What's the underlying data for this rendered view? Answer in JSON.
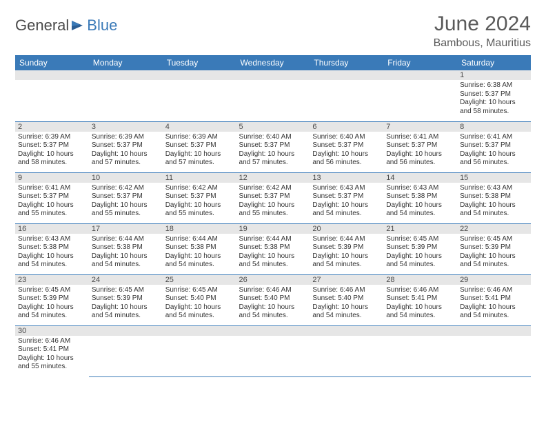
{
  "brand": {
    "part1": "General",
    "part2": "Blue"
  },
  "title": "June 2024",
  "location": "Bambous, Mauritius",
  "colors": {
    "header_bg": "#3a7ab8",
    "header_text": "#ffffff",
    "daynum_bg": "#e6e6e6",
    "border": "#3a7ab8",
    "text": "#333333",
    "title_text": "#5a5a5a"
  },
  "fonts": {
    "header_size": 12,
    "cell_size": 10,
    "title_size": 30,
    "location_size": 16
  },
  "weekdays": [
    "Sunday",
    "Monday",
    "Tuesday",
    "Wednesday",
    "Thursday",
    "Friday",
    "Saturday"
  ],
  "grid": [
    [
      null,
      null,
      null,
      null,
      null,
      null,
      {
        "n": "1",
        "sr": "Sunrise: 6:38 AM",
        "ss": "Sunset: 5:37 PM",
        "dl": "Daylight: 10 hours and 58 minutes."
      }
    ],
    [
      {
        "n": "2",
        "sr": "Sunrise: 6:39 AM",
        "ss": "Sunset: 5:37 PM",
        "dl": "Daylight: 10 hours and 58 minutes."
      },
      {
        "n": "3",
        "sr": "Sunrise: 6:39 AM",
        "ss": "Sunset: 5:37 PM",
        "dl": "Daylight: 10 hours and 57 minutes."
      },
      {
        "n": "4",
        "sr": "Sunrise: 6:39 AM",
        "ss": "Sunset: 5:37 PM",
        "dl": "Daylight: 10 hours and 57 minutes."
      },
      {
        "n": "5",
        "sr": "Sunrise: 6:40 AM",
        "ss": "Sunset: 5:37 PM",
        "dl": "Daylight: 10 hours and 57 minutes."
      },
      {
        "n": "6",
        "sr": "Sunrise: 6:40 AM",
        "ss": "Sunset: 5:37 PM",
        "dl": "Daylight: 10 hours and 56 minutes."
      },
      {
        "n": "7",
        "sr": "Sunrise: 6:41 AM",
        "ss": "Sunset: 5:37 PM",
        "dl": "Daylight: 10 hours and 56 minutes."
      },
      {
        "n": "8",
        "sr": "Sunrise: 6:41 AM",
        "ss": "Sunset: 5:37 PM",
        "dl": "Daylight: 10 hours and 56 minutes."
      }
    ],
    [
      {
        "n": "9",
        "sr": "Sunrise: 6:41 AM",
        "ss": "Sunset: 5:37 PM",
        "dl": "Daylight: 10 hours and 55 minutes."
      },
      {
        "n": "10",
        "sr": "Sunrise: 6:42 AM",
        "ss": "Sunset: 5:37 PM",
        "dl": "Daylight: 10 hours and 55 minutes."
      },
      {
        "n": "11",
        "sr": "Sunrise: 6:42 AM",
        "ss": "Sunset: 5:37 PM",
        "dl": "Daylight: 10 hours and 55 minutes."
      },
      {
        "n": "12",
        "sr": "Sunrise: 6:42 AM",
        "ss": "Sunset: 5:37 PM",
        "dl": "Daylight: 10 hours and 55 minutes."
      },
      {
        "n": "13",
        "sr": "Sunrise: 6:43 AM",
        "ss": "Sunset: 5:37 PM",
        "dl": "Daylight: 10 hours and 54 minutes."
      },
      {
        "n": "14",
        "sr": "Sunrise: 6:43 AM",
        "ss": "Sunset: 5:38 PM",
        "dl": "Daylight: 10 hours and 54 minutes."
      },
      {
        "n": "15",
        "sr": "Sunrise: 6:43 AM",
        "ss": "Sunset: 5:38 PM",
        "dl": "Daylight: 10 hours and 54 minutes."
      }
    ],
    [
      {
        "n": "16",
        "sr": "Sunrise: 6:43 AM",
        "ss": "Sunset: 5:38 PM",
        "dl": "Daylight: 10 hours and 54 minutes."
      },
      {
        "n": "17",
        "sr": "Sunrise: 6:44 AM",
        "ss": "Sunset: 5:38 PM",
        "dl": "Daylight: 10 hours and 54 minutes."
      },
      {
        "n": "18",
        "sr": "Sunrise: 6:44 AM",
        "ss": "Sunset: 5:38 PM",
        "dl": "Daylight: 10 hours and 54 minutes."
      },
      {
        "n": "19",
        "sr": "Sunrise: 6:44 AM",
        "ss": "Sunset: 5:38 PM",
        "dl": "Daylight: 10 hours and 54 minutes."
      },
      {
        "n": "20",
        "sr": "Sunrise: 6:44 AM",
        "ss": "Sunset: 5:39 PM",
        "dl": "Daylight: 10 hours and 54 minutes."
      },
      {
        "n": "21",
        "sr": "Sunrise: 6:45 AM",
        "ss": "Sunset: 5:39 PM",
        "dl": "Daylight: 10 hours and 54 minutes."
      },
      {
        "n": "22",
        "sr": "Sunrise: 6:45 AM",
        "ss": "Sunset: 5:39 PM",
        "dl": "Daylight: 10 hours and 54 minutes."
      }
    ],
    [
      {
        "n": "23",
        "sr": "Sunrise: 6:45 AM",
        "ss": "Sunset: 5:39 PM",
        "dl": "Daylight: 10 hours and 54 minutes."
      },
      {
        "n": "24",
        "sr": "Sunrise: 6:45 AM",
        "ss": "Sunset: 5:39 PM",
        "dl": "Daylight: 10 hours and 54 minutes."
      },
      {
        "n": "25",
        "sr": "Sunrise: 6:45 AM",
        "ss": "Sunset: 5:40 PM",
        "dl": "Daylight: 10 hours and 54 minutes."
      },
      {
        "n": "26",
        "sr": "Sunrise: 6:46 AM",
        "ss": "Sunset: 5:40 PM",
        "dl": "Daylight: 10 hours and 54 minutes."
      },
      {
        "n": "27",
        "sr": "Sunrise: 6:46 AM",
        "ss": "Sunset: 5:40 PM",
        "dl": "Daylight: 10 hours and 54 minutes."
      },
      {
        "n": "28",
        "sr": "Sunrise: 6:46 AM",
        "ss": "Sunset: 5:41 PM",
        "dl": "Daylight: 10 hours and 54 minutes."
      },
      {
        "n": "29",
        "sr": "Sunrise: 6:46 AM",
        "ss": "Sunset: 5:41 PM",
        "dl": "Daylight: 10 hours and 54 minutes."
      }
    ],
    [
      {
        "n": "30",
        "sr": "Sunrise: 6:46 AM",
        "ss": "Sunset: 5:41 PM",
        "dl": "Daylight: 10 hours and 55 minutes."
      },
      null,
      null,
      null,
      null,
      null,
      null
    ]
  ]
}
